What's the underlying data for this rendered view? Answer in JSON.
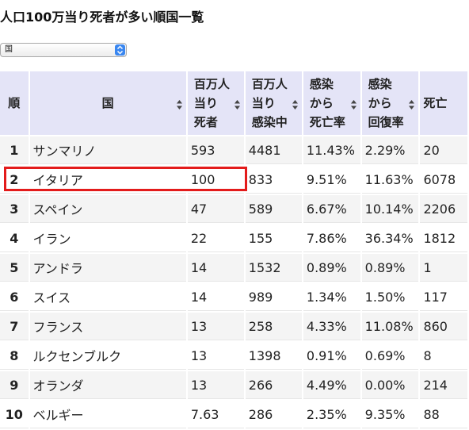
{
  "page": {
    "title": "人口100万当り死者が多い順国一覧"
  },
  "sort_select": {
    "selected": "国"
  },
  "table": {
    "headers": [
      {
        "lines": [
          "順"
        ],
        "sortable": false
      },
      {
        "lines": [
          "国"
        ],
        "sortable": true
      },
      {
        "lines": [
          "百万人",
          "当り",
          "死者"
        ],
        "sortable": true
      },
      {
        "lines": [
          "百万人",
          "当り",
          "感染中"
        ],
        "sortable": true
      },
      {
        "lines": [
          "感染",
          "から",
          "死亡率"
        ],
        "sortable": true
      },
      {
        "lines": [
          "感染",
          "から",
          "回復率"
        ],
        "sortable": true
      },
      {
        "lines": [
          "死亡"
        ],
        "sortable": false
      }
    ],
    "rows": [
      [
        "1",
        "サンマリノ",
        "593",
        "4481",
        "11.43%",
        "2.29%",
        "20"
      ],
      [
        "2",
        "イタリア",
        "100",
        "833",
        "9.51%",
        "11.63%",
        "6078"
      ],
      [
        "3",
        "スペイン",
        "47",
        "589",
        "6.67%",
        "10.14%",
        "2206"
      ],
      [
        "4",
        "イラン",
        "22",
        "155",
        "7.86%",
        "36.34%",
        "1812"
      ],
      [
        "5",
        "アンドラ",
        "14",
        "1532",
        "0.89%",
        "0.89%",
        "1"
      ],
      [
        "6",
        "スイス",
        "14",
        "989",
        "1.34%",
        "1.50%",
        "117"
      ],
      [
        "7",
        "フランス",
        "13",
        "258",
        "4.33%",
        "11.08%",
        "860"
      ],
      [
        "8",
        "ルクセンブルク",
        "13",
        "1398",
        "0.91%",
        "0.69%",
        "8"
      ],
      [
        "9",
        "オランダ",
        "13",
        "266",
        "4.49%",
        "0.00%",
        "214"
      ],
      [
        "10",
        "ベルギー",
        "7.63",
        "286",
        "2.35%",
        "9.35%",
        "88"
      ]
    ],
    "highlighted_row": 1
  },
  "colors": {
    "header_bg": "#e4e4f7",
    "odd_row_bg": "#f4f4f4",
    "highlight_border": "#e31b1b",
    "select_accent": "#3a87f0"
  },
  "icons": {
    "sort": "sort-arrows-icon",
    "select": "chevron-updown-icon"
  }
}
